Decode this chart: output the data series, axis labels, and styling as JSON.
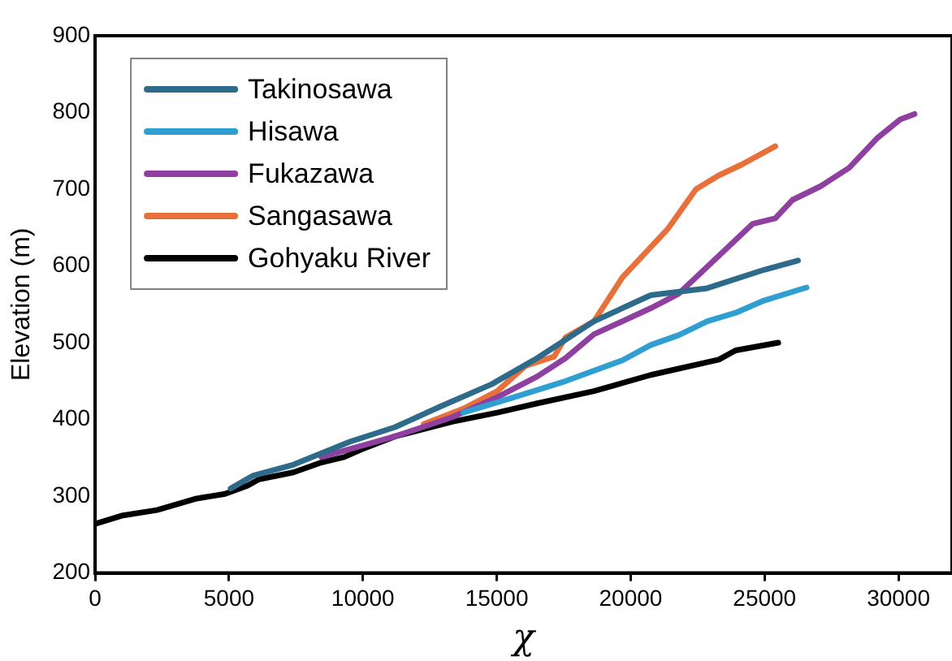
{
  "chart_data": {
    "type": "line",
    "xlabel": "χ",
    "ylabel": "Elevation (m)",
    "xlim": [
      0,
      32000
    ],
    "xticks": [
      0,
      5000,
      10000,
      15000,
      20000,
      25000,
      30000
    ],
    "ylim": [
      200,
      900
    ],
    "yticks": [
      200,
      300,
      400,
      500,
      600,
      700,
      800,
      900
    ],
    "grid": false,
    "legend": "top left",
    "marker": "none",
    "line_style": "solid",
    "series": [
      {
        "name": "Takinosawa",
        "color": "#2e6b8a",
        "x": [
          5060,
          5910,
          7400,
          9510,
          11200,
          12900,
          14810,
          16510,
          18630,
          20750,
          22860,
          24980,
          26250
        ],
        "values": [
          310,
          327,
          341,
          371,
          390,
          417,
          446,
          480,
          528,
          562,
          571,
          595,
          607
        ]
      },
      {
        "name": "Hisawa",
        "color": "#2e9fd0",
        "x": [
          13750,
          15450,
          17570,
          19690,
          20750,
          21800,
          22860,
          23920,
          24980,
          26570
        ],
        "values": [
          409,
          427,
          450,
          477,
          497,
          510,
          528,
          539,
          555,
          572
        ]
      },
      {
        "name": "Fukazawa",
        "color": "#8e3fa0",
        "x": [
          8450,
          11200,
          13330,
          15020,
          16510,
          17570,
          18630,
          20750,
          21800,
          22860,
          24560,
          25400,
          26040,
          27100,
          28160,
          29220,
          30070,
          30600
        ],
        "values": [
          351,
          378,
          403,
          429,
          456,
          480,
          511,
          545,
          564,
          599,
          655,
          662,
          686,
          704,
          728,
          767,
          791,
          798
        ]
      },
      {
        "name": "Sangasawa",
        "color": "#e8703a",
        "x": [
          12270,
          13750,
          15020,
          16080,
          17140,
          17570,
          18630,
          19690,
          21380,
          22440,
          23290,
          24140,
          25400
        ],
        "values": [
          394,
          414,
          437,
          470,
          482,
          507,
          528,
          585,
          648,
          700,
          718,
          732,
          756
        ]
      },
      {
        "name": "Gohyaku River",
        "color": "#000000",
        "x": [
          0,
          1040,
          2310,
          3790,
          4850,
          5700,
          6120,
          7400,
          8450,
          9300,
          9940,
          11200,
          13330,
          15020,
          16510,
          18630,
          20750,
          23290,
          23920,
          25510
        ],
        "values": [
          264,
          275,
          282,
          297,
          303,
          314,
          322,
          331,
          344,
          351,
          361,
          378,
          397,
          409,
          421,
          437,
          458,
          478,
          490,
          500
        ]
      }
    ]
  }
}
